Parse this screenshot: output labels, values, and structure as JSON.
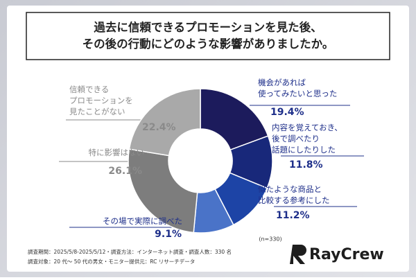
{
  "chart_data": {
    "type": "donut",
    "title": "過去に信頼できるプロモーションを見た後、\nその後の行動にどのような影響がありましたか。",
    "categories": [
      "機会があれば\n使ってみたいと思った",
      "内容を覚えておき、\n後で調べたり\n話題にしたりした",
      "似たような商品と\n比較する参考にした",
      "その場で実際に調べた",
      "特に影響はない",
      "信頼できる\nプロモーションを\n見たことがない"
    ],
    "values": [
      19.4,
      11.8,
      11.2,
      9.1,
      26.1,
      22.4
    ],
    "value_labels": [
      "19.4%",
      "11.8%",
      "11.2%",
      "9.1%",
      "26.1%",
      "22.4%"
    ],
    "colors": [
      "#1c1b5c",
      "#18287a",
      "#1d44a6",
      "#4a73c8",
      "#7d7d7d",
      "#a9a9a9"
    ],
    "note": "(n=330)",
    "footnotes": [
      "調査期間：2025/5/8-2025/5/12・調査方法：インターネット調査・調査人数：330 名",
      "調査対象：20 代〜 50 代の男女・モニター提供元：RC リサーチデータ"
    ],
    "brand": "RayCrew"
  }
}
